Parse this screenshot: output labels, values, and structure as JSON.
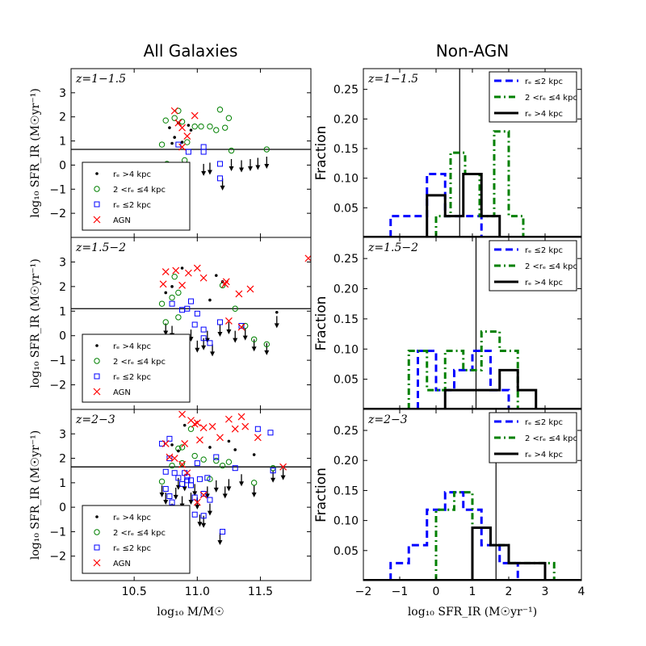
{
  "figure": {
    "left_title": "All Galaxies",
    "right_title": "Non-AGN",
    "left_ylabel": "log₁₀ SFR_IR (M☉yr⁻¹)",
    "left_xlabel": "log₁₀ M/M☉",
    "right_ylabel": "Fraction",
    "right_xlabel": "log₁₀ SFR_IR (M☉yr⁻¹)",
    "colors": {
      "blue": "#0000ff",
      "green": "#008000",
      "red": "#ff0000",
      "black": "#000000"
    }
  },
  "chart_data": [
    {
      "type": "scatter",
      "panel": "all-galaxies",
      "label": "z=1−1.5",
      "xlim": [
        10.0,
        11.9
      ],
      "ylim": [
        -3,
        4
      ],
      "xticks": [
        10.5,
        11.0,
        11.5
      ],
      "yticks": [
        -2,
        -1,
        0,
        1,
        2,
        3
      ],
      "threshold": 0.65,
      "legend": [
        "rₑ >4 kpc",
        "2 <rₑ ≤4 kpc",
        "rₑ ≤2 kpc",
        "AGN"
      ],
      "large": [
        [
          10.78,
          1.55
        ],
        [
          10.85,
          1.75
        ],
        [
          10.93,
          1.65
        ],
        [
          10.95,
          1.45
        ],
        [
          10.82,
          1.15
        ],
        [
          10.8,
          0.9
        ],
        [
          10.88,
          0.95
        ]
      ],
      "mid": [
        [
          10.72,
          0.85
        ],
        [
          10.75,
          1.85
        ],
        [
          10.82,
          1.95
        ],
        [
          10.85,
          2.25
        ],
        [
          10.88,
          1.8
        ],
        [
          10.92,
          0.95
        ],
        [
          10.98,
          1.6
        ],
        [
          11.03,
          1.6
        ],
        [
          11.1,
          1.6
        ],
        [
          11.15,
          1.45
        ],
        [
          11.18,
          2.3
        ],
        [
          11.22,
          1.55
        ],
        [
          11.25,
          1.95
        ],
        [
          11.27,
          0.6
        ],
        [
          11.55,
          0.65
        ],
        [
          10.76,
          0.05
        ],
        [
          10.9,
          0.2
        ]
      ],
      "small": [
        [
          10.85,
          0.85
        ],
        [
          11.05,
          0.75
        ],
        [
          11.05,
          0.55
        ],
        [
          11.18,
          0.05
        ],
        [
          11.18,
          -0.55
        ],
        [
          10.93,
          0.55
        ]
      ],
      "agn": [
        [
          10.82,
          2.25
        ],
        [
          10.85,
          1.75
        ],
        [
          10.88,
          1.55
        ],
        [
          10.92,
          1.2
        ],
        [
          10.98,
          2.05
        ],
        [
          10.88,
          0.75
        ]
      ],
      "upper_limits": [
        [
          10.78,
          0.0
        ],
        [
          10.87,
          0.1
        ],
        [
          11.05,
          0.05
        ],
        [
          11.1,
          0.1
        ],
        [
          11.2,
          -0.55
        ],
        [
          11.27,
          0.25
        ],
        [
          11.35,
          0.2
        ],
        [
          11.42,
          0.25
        ],
        [
          11.48,
          0.3
        ],
        [
          11.55,
          0.35
        ]
      ]
    },
    {
      "type": "scatter",
      "panel": "all-galaxies",
      "label": "z=1.5−2",
      "xlim": [
        10.0,
        11.9
      ],
      "ylim": [
        -3,
        4
      ],
      "xticks": [
        10.5,
        11.0,
        11.5
      ],
      "yticks": [
        -2,
        -1,
        0,
        1,
        2,
        3
      ],
      "threshold": 1.1,
      "legend": [
        "rₑ >4 kpc",
        "2 <rₑ ≤4 kpc",
        "rₑ ≤2 kpc",
        "AGN"
      ],
      "large": [
        [
          10.75,
          1.75
        ],
        [
          10.8,
          2.0
        ],
        [
          10.88,
          2.75
        ],
        [
          11.15,
          2.45
        ],
        [
          11.2,
          2.2
        ],
        [
          11.1,
          1.45
        ],
        [
          11.63,
          0.95
        ]
      ],
      "mid": [
        [
          10.72,
          1.3
        ],
        [
          10.8,
          1.55
        ],
        [
          10.82,
          2.4
        ],
        [
          10.85,
          1.75
        ],
        [
          11.2,
          2.05
        ],
        [
          11.3,
          1.1
        ],
        [
          11.38,
          0.4
        ],
        [
          11.45,
          -0.15
        ],
        [
          11.55,
          -0.35
        ],
        [
          10.75,
          0.55
        ],
        [
          10.85,
          0.75
        ]
      ],
      "small": [
        [
          10.8,
          1.3
        ],
        [
          10.88,
          1.05
        ],
        [
          10.95,
          1.4
        ],
        [
          11.0,
          0.9
        ],
        [
          10.98,
          0.45
        ],
        [
          11.05,
          -0.1
        ],
        [
          11.05,
          0.25
        ],
        [
          11.1,
          -0.3
        ],
        [
          11.18,
          0.55
        ],
        [
          11.35,
          0.4
        ],
        [
          10.92,
          1.1
        ]
      ],
      "agn": [
        [
          10.73,
          2.1
        ],
        [
          10.75,
          2.6
        ],
        [
          10.83,
          2.65
        ],
        [
          10.88,
          2.05
        ],
        [
          10.93,
          2.55
        ],
        [
          11.0,
          2.75
        ],
        [
          11.05,
          2.35
        ],
        [
          11.22,
          2.1
        ],
        [
          11.23,
          2.2
        ],
        [
          11.33,
          1.7
        ],
        [
          11.42,
          1.9
        ],
        [
          11.25,
          0.6
        ],
        [
          11.35,
          0.35
        ],
        [
          11.88,
          3.15
        ]
      ],
      "upper_limits": [
        [
          10.75,
          0.5
        ],
        [
          10.8,
          0.4
        ],
        [
          10.88,
          0.05
        ],
        [
          10.95,
          0.25
        ],
        [
          11.0,
          -0.2
        ],
        [
          11.05,
          -0.1
        ],
        [
          11.08,
          0.2
        ],
        [
          11.12,
          -0.35
        ],
        [
          11.18,
          0.45
        ],
        [
          11.25,
          0.55
        ],
        [
          11.3,
          0.2
        ],
        [
          11.38,
          0.3
        ],
        [
          11.45,
          -0.15
        ],
        [
          11.55,
          -0.3
        ],
        [
          11.63,
          0.8
        ]
      ]
    },
    {
      "type": "scatter",
      "panel": "all-galaxies",
      "label": "z=2−3",
      "xlim": [
        10.0,
        11.9
      ],
      "ylim": [
        -3,
        4
      ],
      "xticks": [
        10.5,
        11.0,
        11.5
      ],
      "yticks": [
        -2,
        -1,
        0,
        1,
        2,
        3
      ],
      "threshold": 1.65,
      "legend": [
        "rₑ >4 kpc",
        "2 <rₑ ≤4 kpc",
        "rₑ ≤2 kpc",
        "AGN"
      ],
      "large": [
        [
          10.8,
          2.55
        ],
        [
          10.9,
          3.35
        ],
        [
          11.1,
          2.45
        ],
        [
          11.3,
          2.35
        ],
        [
          11.45,
          2.15
        ],
        [
          10.85,
          2.3
        ],
        [
          11.25,
          2.7
        ]
      ],
      "mid": [
        [
          10.72,
          1.05
        ],
        [
          10.8,
          1.7
        ],
        [
          10.85,
          2.4
        ],
        [
          10.88,
          2.45
        ],
        [
          10.95,
          3.2
        ],
        [
          11.05,
          1.95
        ],
        [
          11.1,
          1.15
        ],
        [
          11.15,
          1.9
        ],
        [
          11.2,
          1.7
        ],
        [
          11.25,
          1.85
        ],
        [
          11.45,
          1.0
        ],
        [
          11.6,
          1.6
        ],
        [
          10.88,
          1.8
        ],
        [
          10.98,
          2.1
        ]
      ],
      "small": [
        [
          10.72,
          2.6
        ],
        [
          10.78,
          2.8
        ],
        [
          10.78,
          2.0
        ],
        [
          10.75,
          1.45
        ],
        [
          10.75,
          0.75
        ],
        [
          10.78,
          0.45
        ],
        [
          10.82,
          1.4
        ],
        [
          10.85,
          1.2
        ],
        [
          10.88,
          0.95
        ],
        [
          10.9,
          1.4
        ],
        [
          10.92,
          1.25
        ],
        [
          10.95,
          1.1
        ],
        [
          10.98,
          0.4
        ],
        [
          10.98,
          -0.3
        ],
        [
          11.0,
          1.8
        ],
        [
          11.02,
          1.15
        ],
        [
          11.05,
          -0.35
        ],
        [
          11.05,
          0.55
        ],
        [
          11.08,
          1.2
        ],
        [
          11.1,
          0.3
        ],
        [
          11.2,
          -1.0
        ],
        [
          11.3,
          1.6
        ],
        [
          11.48,
          3.2
        ],
        [
          11.58,
          3.05
        ],
        [
          11.6,
          1.5
        ],
        [
          10.8,
          0.2
        ],
        [
          10.92,
          1.1
        ],
        [
          10.95,
          0.9
        ],
        [
          11.15,
          2.05
        ]
      ],
      "agn": [
        [
          10.75,
          2.6
        ],
        [
          10.78,
          2.05
        ],
        [
          10.88,
          3.8
        ],
        [
          10.9,
          2.6
        ],
        [
          10.95,
          3.55
        ],
        [
          10.98,
          3.4
        ],
        [
          11.0,
          3.45
        ],
        [
          11.02,
          2.75
        ],
        [
          11.05,
          3.25
        ],
        [
          11.12,
          3.3
        ],
        [
          11.18,
          2.85
        ],
        [
          11.25,
          3.6
        ],
        [
          11.3,
          3.2
        ],
        [
          11.35,
          3.7
        ],
        [
          11.38,
          3.3
        ],
        [
          11.48,
          2.85
        ],
        [
          11.68,
          1.65
        ],
        [
          10.82,
          2.0
        ],
        [
          10.92,
          1.4
        ],
        [
          10.88,
          1.75
        ],
        [
          11.05,
          0.5
        ],
        [
          11.0,
          0.2
        ]
      ],
      "upper_limits": [
        [
          10.72,
          0.9
        ],
        [
          10.75,
          0.6
        ],
        [
          10.8,
          0.15
        ],
        [
          10.83,
          0.8
        ],
        [
          10.85,
          1.2
        ],
        [
          10.88,
          0.45
        ],
        [
          10.9,
          1.15
        ],
        [
          10.92,
          -0.05
        ],
        [
          10.95,
          0.6
        ],
        [
          10.98,
          0.95
        ],
        [
          11.0,
          0.4
        ],
        [
          11.02,
          -0.3
        ],
        [
          11.05,
          -0.35
        ],
        [
          11.08,
          0.85
        ],
        [
          11.1,
          0.15
        ],
        [
          11.15,
          1.1
        ],
        [
          11.18,
          -1.05
        ],
        [
          11.22,
          0.85
        ],
        [
          11.25,
          1.15
        ],
        [
          11.35,
          1.35
        ],
        [
          11.45,
          0.9
        ],
        [
          11.6,
          1.5
        ],
        [
          11.68,
          1.6
        ]
      ]
    },
    {
      "type": "histogram",
      "panel": "non-agn",
      "label": "z=1−1.5",
      "xlim": [
        -2,
        4
      ],
      "ylim": [
        0,
        0.285
      ],
      "xticks": [
        -2,
        -1,
        0,
        1,
        2,
        3,
        4
      ],
      "yticks": [
        0.05,
        0.1,
        0.15,
        0.2,
        0.25
      ],
      "vline": 0.65,
      "legend": [
        "rₑ ≤2 kpc",
        "2 <rₑ ≤4 kpc",
        "rₑ >4 kpc"
      ],
      "series": [
        {
          "name": "rₑ ≤2 kpc",
          "style": "dashed",
          "color": "#0000ff",
          "edges": [
            -1.25,
            -0.75,
            -0.25,
            0.25,
            0.75,
            1.25
          ],
          "values": [
            0.036,
            0.036,
            0.107,
            0.036,
            0.036
          ]
        },
        {
          "name": "2 <rₑ ≤4 kpc",
          "style": "dashdot",
          "color": "#008000",
          "edges": [
            0.0,
            0.4,
            0.8,
            1.2,
            1.6,
            2.0,
            2.4
          ],
          "values": [
            0.036,
            0.143,
            0.107,
            0.036,
            0.179,
            0.036
          ]
        },
        {
          "name": "rₑ >4 kpc",
          "style": "solid",
          "color": "#000000",
          "edges": [
            -0.25,
            0.25,
            0.75,
            1.25,
            1.75
          ],
          "values": [
            0.071,
            0.036,
            0.107,
            0.036
          ]
        }
      ]
    },
    {
      "type": "histogram",
      "panel": "non-agn",
      "label": "z=1.5−2",
      "xlim": [
        -2,
        4
      ],
      "ylim": [
        0,
        0.285
      ],
      "xticks": [
        -2,
        -1,
        0,
        1,
        2,
        3,
        4
      ],
      "yticks": [
        0.05,
        0.1,
        0.15,
        0.2,
        0.25
      ],
      "vline": 1.1,
      "legend": [
        "rₑ ≤2 kpc",
        "2 <rₑ ≤4 kpc",
        "rₑ >4 kpc"
      ],
      "series": [
        {
          "name": "rₑ ≤2 kpc",
          "style": "dashed",
          "color": "#0000ff",
          "edges": [
            -0.5,
            0.0,
            0.5,
            1.0,
            1.5,
            2.0
          ],
          "values": [
            0.097,
            0.032,
            0.065,
            0.097,
            0.032
          ]
        },
        {
          "name": "2 <rₑ ≤4 kpc",
          "style": "dashdot",
          "color": "#008000",
          "edges": [
            -0.75,
            -0.25,
            0.25,
            0.75,
            1.25,
            1.75,
            2.25
          ],
          "values": [
            0.097,
            0.032,
            0.097,
            0.065,
            0.129,
            0.097
          ]
        },
        {
          "name": "rₑ >4 kpc",
          "style": "solid",
          "color": "#000000",
          "edges": [
            0.25,
            0.75,
            1.25,
            1.75,
            2.25,
            2.75
          ],
          "values": [
            0.032,
            0.032,
            0.032,
            0.065,
            0.032
          ]
        }
      ]
    },
    {
      "type": "histogram",
      "panel": "non-agn",
      "label": "z=2−3",
      "xlim": [
        -2,
        4
      ],
      "ylim": [
        0,
        0.285
      ],
      "xticks": [
        -2,
        -1,
        0,
        1,
        2,
        3,
        4
      ],
      "yticks": [
        0.05,
        0.1,
        0.15,
        0.2,
        0.25
      ],
      "vline": 1.65,
      "legend": [
        "rₑ ≤2 kpc",
        "2 <rₑ ≤4 kpc",
        "rₑ >4 kpc"
      ],
      "series": [
        {
          "name": "rₑ ≤2 kpc",
          "style": "dashed",
          "color": "#0000ff",
          "edges": [
            -1.25,
            -0.75,
            -0.25,
            0.25,
            0.75,
            1.25,
            1.75,
            2.25
          ],
          "values": [
            0.029,
            0.059,
            0.118,
            0.147,
            0.118,
            0.059,
            0.029
          ]
        },
        {
          "name": "2 <rₑ ≤4 kpc",
          "style": "dashdot",
          "color": "#008000",
          "edges": [
            0.0,
            0.5,
            1.0,
            1.5,
            2.0,
            2.5,
            3.0,
            3.25
          ],
          "values": [
            0.118,
            0.147,
            0.088,
            0.059,
            0.029,
            0.029,
            0.029
          ]
        },
        {
          "name": "rₑ >4 kpc",
          "style": "solid",
          "color": "#000000",
          "edges": [
            1.0,
            1.5,
            2.0,
            2.5,
            3.0
          ],
          "values": [
            0.088,
            0.059,
            0.029,
            0.029
          ]
        }
      ]
    }
  ]
}
